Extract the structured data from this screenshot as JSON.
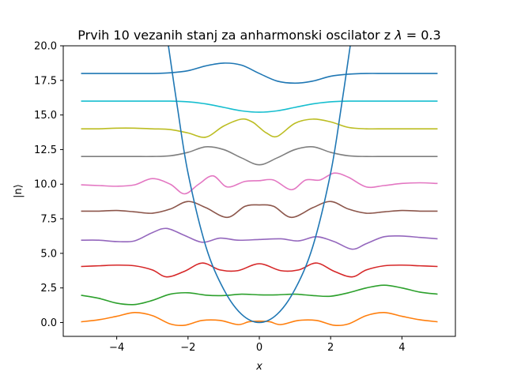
{
  "chart_data": {
    "type": "line",
    "title": "Prvih 10 vezanih stanj za anharmonski oscilator z λ = 0.3",
    "title_parts": {
      "prefix": "Prvih 10 vezanih stanj za anharmonski oscilator z ",
      "symbol": "λ",
      "suffix": " = 0.3"
    },
    "xlabel": "x",
    "ylabel": "|n⟩",
    "xlim": [
      -5.5,
      5.5
    ],
    "ylim": [
      -1.0,
      20.0
    ],
    "xticks": [
      -4,
      -2,
      0,
      2,
      4
    ],
    "xtick_labels": [
      "−4",
      "−2",
      "0",
      "2",
      "4"
    ],
    "yticks": [
      0.0,
      2.5,
      5.0,
      7.5,
      10.0,
      12.5,
      15.0,
      17.5,
      20.0
    ],
    "ytick_labels": [
      "0.0",
      "2.5",
      "5.0",
      "7.5",
      "10.0",
      "12.5",
      "15.0",
      "17.5",
      "20.0"
    ],
    "grid": false,
    "legend": "none",
    "potential": {
      "color": "#1f77b4",
      "x": [
        -2.55,
        -2.3,
        -2.0,
        -1.5,
        -1.0,
        -0.5,
        0.0,
        0.5,
        1.0,
        1.5,
        2.0,
        2.3,
        2.55
      ],
      "y": [
        20.0,
        15.6,
        10.8,
        5.5,
        2.4,
        0.6,
        0.0,
        0.6,
        2.4,
        5.5,
        10.8,
        15.6,
        20.0
      ]
    },
    "series": [
      {
        "color": "#ff7f0e",
        "x": [
          -5.0,
          -4.5,
          -4.0,
          -3.5,
          -3.0,
          -2.5,
          -2.1,
          -1.6,
          -1.1,
          -0.6,
          -0.3,
          0.0,
          0.3,
          0.6,
          1.1,
          1.6,
          2.1,
          2.5,
          3.0,
          3.5,
          4.0,
          4.5,
          5.0
        ],
        "y": [
          0.05,
          0.2,
          0.45,
          0.72,
          0.5,
          -0.1,
          -0.2,
          0.15,
          0.15,
          -0.15,
          0.05,
          0.1,
          0.05,
          -0.15,
          0.15,
          0.15,
          -0.2,
          -0.1,
          0.5,
          0.72,
          0.45,
          0.2,
          0.05
        ]
      },
      {
        "color": "#2ca02c",
        "x": [
          -5.0,
          -4.5,
          -4.0,
          -3.5,
          -3.0,
          -2.5,
          -2.0,
          -1.5,
          -1.0,
          -0.5,
          0.0,
          0.5,
          1.0,
          1.5,
          2.0,
          2.5,
          3.0,
          3.5,
          4.0,
          4.5,
          5.0
        ],
        "y": [
          1.97,
          1.75,
          1.4,
          1.3,
          1.6,
          2.05,
          2.15,
          1.98,
          1.95,
          2.05,
          2.0,
          2.0,
          2.05,
          1.95,
          1.9,
          2.15,
          2.5,
          2.7,
          2.5,
          2.2,
          2.05
        ]
      },
      {
        "color": "#d62728",
        "x": [
          -5.0,
          -4.5,
          -4.0,
          -3.5,
          -3.0,
          -2.6,
          -2.1,
          -1.6,
          -1.1,
          -0.6,
          0.0,
          0.6,
          1.1,
          1.6,
          2.1,
          2.6,
          3.0,
          3.5,
          4.0,
          4.5,
          5.0
        ],
        "y": [
          4.05,
          4.1,
          4.15,
          4.1,
          3.8,
          3.3,
          3.7,
          4.3,
          3.8,
          3.75,
          4.25,
          3.75,
          3.8,
          4.3,
          3.7,
          3.3,
          3.8,
          4.1,
          4.15,
          4.1,
          4.05
        ]
      },
      {
        "color": "#9467bd",
        "x": [
          -5.0,
          -4.5,
          -4.0,
          -3.5,
          -3.0,
          -2.6,
          -2.1,
          -1.6,
          -1.1,
          -0.6,
          0.0,
          0.6,
          1.1,
          1.6,
          2.1,
          2.6,
          3.0,
          3.5,
          4.0,
          4.5,
          5.0
        ],
        "y": [
          5.95,
          5.95,
          5.85,
          5.9,
          6.5,
          6.8,
          6.3,
          5.8,
          6.1,
          5.95,
          6.0,
          6.05,
          5.9,
          6.2,
          5.85,
          5.3,
          5.7,
          6.2,
          6.25,
          6.15,
          6.05
        ]
      },
      {
        "color": "#8c564b",
        "x": [
          -5.0,
          -4.5,
          -4.0,
          -3.5,
          -3.0,
          -2.5,
          -2.0,
          -1.5,
          -0.9,
          -0.4,
          0.0,
          0.4,
          0.9,
          1.5,
          2.0,
          2.5,
          3.0,
          3.5,
          4.0,
          4.5,
          5.0
        ],
        "y": [
          8.05,
          8.05,
          8.1,
          8.0,
          7.9,
          8.2,
          8.75,
          8.3,
          7.6,
          8.4,
          8.5,
          8.4,
          7.6,
          8.3,
          8.75,
          8.2,
          7.9,
          8.0,
          8.1,
          8.05,
          8.05
        ]
      },
      {
        "color": "#e377c2",
        "x": [
          -5.0,
          -4.5,
          -4.0,
          -3.5,
          -3.0,
          -2.5,
          -2.1,
          -1.7,
          -1.3,
          -0.9,
          -0.4,
          0.0,
          0.4,
          0.9,
          1.3,
          1.7,
          2.1,
          2.5,
          3.0,
          3.5,
          4.0,
          4.5,
          5.0
        ],
        "y": [
          9.95,
          9.9,
          9.85,
          9.95,
          10.4,
          10.0,
          9.3,
          10.0,
          10.6,
          9.8,
          10.2,
          10.25,
          10.3,
          9.6,
          10.3,
          10.3,
          10.8,
          10.5,
          9.8,
          9.9,
          10.05,
          10.1,
          10.05
        ]
      },
      {
        "color": "#7f7f7f",
        "x": [
          -5.0,
          -4.5,
          -4.0,
          -3.5,
          -3.0,
          -2.5,
          -2.0,
          -1.5,
          -1.0,
          -0.5,
          0.0,
          0.5,
          1.0,
          1.5,
          2.0,
          2.5,
          3.0,
          3.5,
          4.0,
          4.5,
          5.0
        ],
        "y": [
          12.0,
          12.0,
          12.0,
          12.0,
          12.0,
          12.05,
          12.3,
          12.7,
          12.5,
          11.9,
          11.4,
          11.9,
          12.5,
          12.7,
          12.3,
          12.05,
          12.0,
          12.0,
          12.0,
          12.0,
          12.0
        ]
      },
      {
        "color": "#bcbd22",
        "x": [
          -5.0,
          -4.5,
          -4.0,
          -3.5,
          -3.0,
          -2.5,
          -2.0,
          -1.5,
          -1.0,
          -0.5,
          -0.2,
          0.0,
          0.2,
          0.5,
          1.0,
          1.5,
          2.0,
          2.5,
          3.0,
          3.5,
          4.0,
          4.5,
          5.0
        ],
        "y": [
          14.0,
          14.0,
          14.05,
          14.05,
          14.0,
          13.95,
          13.7,
          13.4,
          14.2,
          14.7,
          14.5,
          14.1,
          13.7,
          13.45,
          14.4,
          14.7,
          14.5,
          14.1,
          14.0,
          14.0,
          14.0,
          14.0,
          14.0
        ]
      },
      {
        "color": "#17becf",
        "x": [
          -5.0,
          -4.5,
          -4.0,
          -3.5,
          -3.0,
          -2.5,
          -2.0,
          -1.5,
          -1.0,
          -0.5,
          0.0,
          0.5,
          1.0,
          1.5,
          2.0,
          2.5,
          3.0,
          3.5,
          4.0,
          4.5,
          5.0
        ],
        "y": [
          16.0,
          16.0,
          16.0,
          16.0,
          16.0,
          16.0,
          15.95,
          15.8,
          15.55,
          15.3,
          15.2,
          15.3,
          15.55,
          15.8,
          15.95,
          16.0,
          16.0,
          16.0,
          16.0,
          16.0,
          16.0
        ]
      },
      {
        "color": "#1f77b4",
        "x": [
          -5.0,
          -4.5,
          -4.0,
          -3.5,
          -3.0,
          -2.5,
          -2.0,
          -1.5,
          -1.0,
          -0.5,
          0.0,
          0.5,
          1.0,
          1.5,
          2.0,
          2.5,
          3.0,
          3.5,
          4.0,
          4.5,
          5.0
        ],
        "y": [
          18.0,
          18.0,
          18.0,
          18.0,
          18.0,
          18.05,
          18.2,
          18.55,
          18.75,
          18.6,
          18.0,
          17.45,
          17.3,
          17.45,
          17.8,
          17.95,
          18.0,
          18.0,
          18.0,
          18.0,
          18.0
        ]
      }
    ]
  }
}
